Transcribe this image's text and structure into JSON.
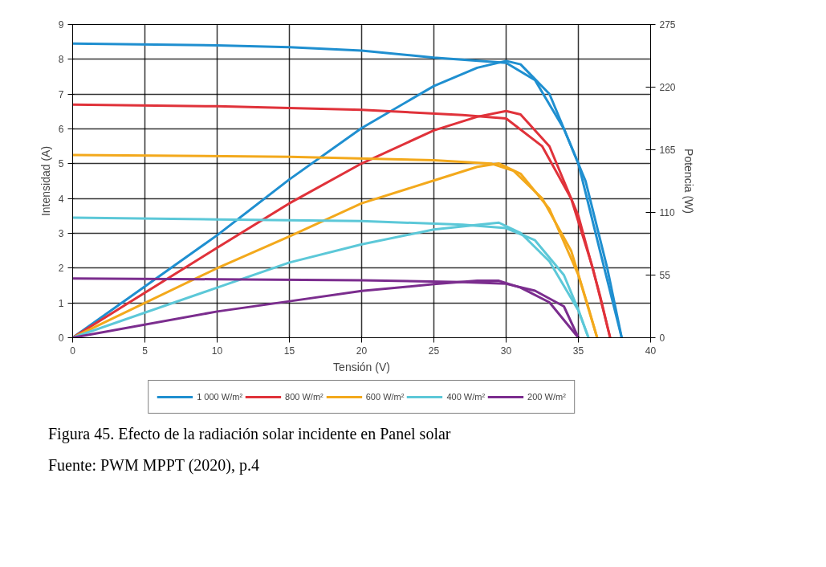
{
  "chart_data": {
    "type": "line",
    "xlabel": "Tensión (V)",
    "ylabel": "Intensidad (A)",
    "y2label": "Potencia (W)",
    "xlim": [
      0,
      40
    ],
    "xticks": [
      0,
      5,
      10,
      15,
      20,
      25,
      30,
      35,
      40
    ],
    "ylim": [
      0,
      9
    ],
    "yticks": [
      0,
      1,
      2,
      3,
      4,
      5,
      6,
      7,
      8,
      9
    ],
    "y2lim": [
      0,
      275
    ],
    "y2ticks": [
      0,
      55,
      110,
      165,
      220,
      275
    ],
    "grid": true,
    "legend": "bottom",
    "marker": "none",
    "line_style": "solid",
    "series": [
      {
        "name": "1 000 W/m²",
        "color": "#1f8fd0",
        "x": [
          0,
          10,
          15,
          20,
          25,
          30,
          32,
          34,
          35.5,
          37,
          38
        ],
        "values": [
          8.45,
          8.4,
          8.35,
          8.25,
          8.05,
          7.9,
          7.4,
          6,
          4.5,
          2,
          0
        ]
      },
      {
        "color": "#1f8fd0",
        "axis": "y2",
        "x": [
          0,
          10,
          15,
          20,
          25,
          28,
          30,
          31,
          33,
          35,
          36.5,
          38
        ],
        "values": [
          0,
          90,
          139,
          184,
          221,
          237,
          243,
          240,
          214,
          153,
          76,
          0
        ]
      },
      {
        "name": "800 W/m²",
        "color": "#e0323a",
        "x": [
          0,
          10,
          20,
          27,
          30,
          32.5,
          34.5,
          36,
          37.2
        ],
        "values": [
          6.7,
          6.65,
          6.55,
          6.4,
          6.3,
          5.5,
          4,
          2,
          0
        ]
      },
      {
        "color": "#e0323a",
        "axis": "y2",
        "x": [
          0,
          10,
          15,
          20,
          25,
          28,
          30,
          31,
          33,
          35,
          36.5,
          37.2
        ],
        "values": [
          0,
          79,
          118,
          153,
          182,
          194,
          199,
          196,
          168,
          107,
          37,
          0
        ]
      },
      {
        "name": "600 W/m²",
        "color": "#f3a91c",
        "x": [
          0,
          15,
          25,
          29,
          30.5,
          32.5,
          34.5,
          35.6,
          36.3
        ],
        "values": [
          5.25,
          5.2,
          5.1,
          5,
          4.8,
          4,
          2.5,
          1,
          0
        ]
      },
      {
        "color": "#f3a91c",
        "axis": "y2",
        "x": [
          0,
          10,
          15,
          20,
          25,
          28,
          29.5,
          31,
          33,
          35,
          36.3
        ],
        "values": [
          0,
          61,
          89,
          118,
          138,
          150,
          153,
          144,
          113,
          55,
          0
        ]
      },
      {
        "name": "400 W/m²",
        "color": "#5cc8d8",
        "x": [
          0,
          10,
          20,
          27,
          30,
          32,
          34,
          35,
          35.7
        ],
        "values": [
          3.45,
          3.4,
          3.35,
          3.25,
          3.15,
          2.8,
          1.8,
          0.8,
          0
        ]
      },
      {
        "color": "#5cc8d8",
        "axis": "y2",
        "x": [
          0,
          10,
          15,
          20,
          25,
          28,
          29.5,
          31,
          33,
          35,
          35.7
        ],
        "values": [
          0,
          44,
          66,
          82,
          95,
          99,
          101,
          92,
          67,
          24,
          0
        ]
      },
      {
        "name": "200 W/m²",
        "color": "#7b2d8e",
        "x": [
          0,
          10,
          20,
          27,
          30,
          32,
          34,
          35
        ],
        "values": [
          1.7,
          1.68,
          1.65,
          1.6,
          1.55,
          1.35,
          0.9,
          0
        ]
      },
      {
        "color": "#7b2d8e",
        "axis": "y2",
        "x": [
          0,
          10,
          15,
          20,
          25,
          28,
          29.5,
          31,
          33,
          35
        ],
        "values": [
          0,
          23,
          32,
          41,
          47,
          50,
          50,
          44,
          31,
          0
        ]
      }
    ],
    "annotations": [
      "Figura 45. Efecto de la radiación solar incidente en Panel solar",
      "Fuente: PWM MPPT (2020), p.4"
    ]
  }
}
